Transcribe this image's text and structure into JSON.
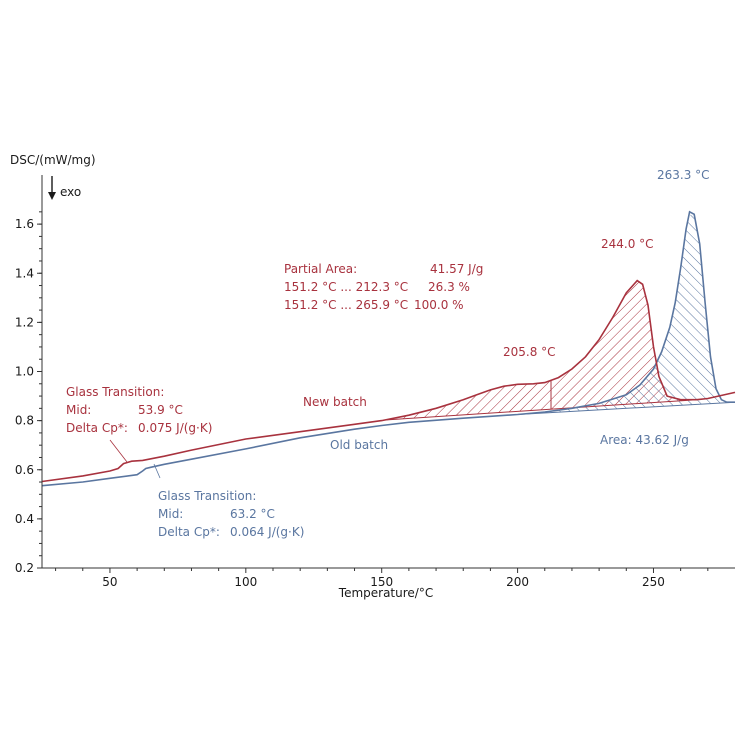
{
  "chart_data": {
    "type": "line",
    "title": "",
    "ylabel": "DSC/(mW/mg)",
    "xlabel": "Temperature/°C",
    "exo_label": "exo",
    "xlim": [
      25,
      280
    ],
    "ylim": [
      0.2,
      1.8
    ],
    "x_ticks": [
      50,
      100,
      150,
      200,
      250
    ],
    "y_ticks": [
      0.2,
      0.4,
      0.6,
      0.8,
      1.0,
      1.2,
      1.4,
      1.6
    ],
    "x_tick_labels": [
      "50",
      "100",
      "150",
      "200",
      "250"
    ],
    "y_tick_labels": [
      "0.2",
      "0.4",
      "0.6",
      "0.8",
      "1.0",
      "1.2",
      "1.4",
      "1.6"
    ],
    "colors": {
      "new_batch": "#a8323e",
      "old_batch": "#5a76a0",
      "axis": "#333333"
    },
    "series": [
      {
        "name": "New batch",
        "color": "#a8323e",
        "x": [
          25,
          40,
          50,
          53,
          55,
          58,
          62,
          70,
          80,
          100,
          120,
          140,
          150,
          160,
          170,
          180,
          185,
          190,
          195,
          200,
          205.8,
          210,
          215,
          220,
          225,
          230,
          235,
          240,
          244.0,
          246,
          248,
          250,
          252,
          255,
          260,
          265.9,
          270,
          280
        ],
        "y": [
          0.552,
          0.575,
          0.595,
          0.605,
          0.625,
          0.635,
          0.638,
          0.655,
          0.68,
          0.725,
          0.755,
          0.785,
          0.8,
          0.822,
          0.85,
          0.885,
          0.905,
          0.925,
          0.94,
          0.948,
          0.95,
          0.955,
          0.975,
          1.01,
          1.06,
          1.13,
          1.22,
          1.32,
          1.37,
          1.355,
          1.27,
          1.1,
          0.98,
          0.9,
          0.885,
          0.885,
          0.89,
          0.915
        ]
      },
      {
        "name": "Old batch",
        "color": "#5a76a0",
        "x": [
          25,
          40,
          50,
          60,
          62,
          63.2,
          65,
          70,
          80,
          100,
          120,
          140,
          150,
          160,
          180,
          200,
          210,
          220,
          230,
          240,
          245,
          250,
          253,
          256,
          258,
          260,
          262,
          263.3,
          265,
          267,
          269,
          271,
          273,
          275,
          277,
          280
        ],
        "y": [
          0.535,
          0.55,
          0.565,
          0.58,
          0.595,
          0.605,
          0.61,
          0.622,
          0.643,
          0.685,
          0.73,
          0.765,
          0.78,
          0.793,
          0.81,
          0.825,
          0.835,
          0.85,
          0.87,
          0.905,
          0.945,
          1.01,
          1.08,
          1.18,
          1.28,
          1.42,
          1.58,
          1.65,
          1.64,
          1.52,
          1.28,
          1.06,
          0.93,
          0.885,
          0.875,
          0.875
        ]
      }
    ],
    "annotations": {
      "new_glass": {
        "title": "Glass Transition:",
        "mid_label": "Mid:",
        "mid_value": "53.9 °C",
        "cp_label": "Delta Cp*:",
        "cp_value": "0.075 J/(g·K)"
      },
      "old_glass": {
        "title": "Glass Transition:",
        "mid_label": "Mid:",
        "mid_value": "63.2 °C",
        "cp_label": "Delta Cp*:",
        "cp_value": "0.064 J/(g·K)"
      },
      "partial_area": {
        "title": "Partial Area:",
        "total": "41.57 J/g",
        "range1": "151.2 °C ... 212.3 °C",
        "pct1": "26.3 %",
        "range2": "151.2 °C ... 265.9 °C",
        "pct2": "100.0 %"
      },
      "area_old": "Area: 43.62 J/g",
      "peak_new_1": "205.8 °C",
      "peak_new_2": "244.0 °C",
      "peak_old": "263.3 °C",
      "label_new": "New batch",
      "label_old": "Old batch"
    },
    "hatch_ranges": {
      "new_partial": [
        151.2,
        212.3
      ],
      "new_full": [
        151.2,
        265.9
      ],
      "old_area": [
        200,
        280
      ]
    }
  }
}
